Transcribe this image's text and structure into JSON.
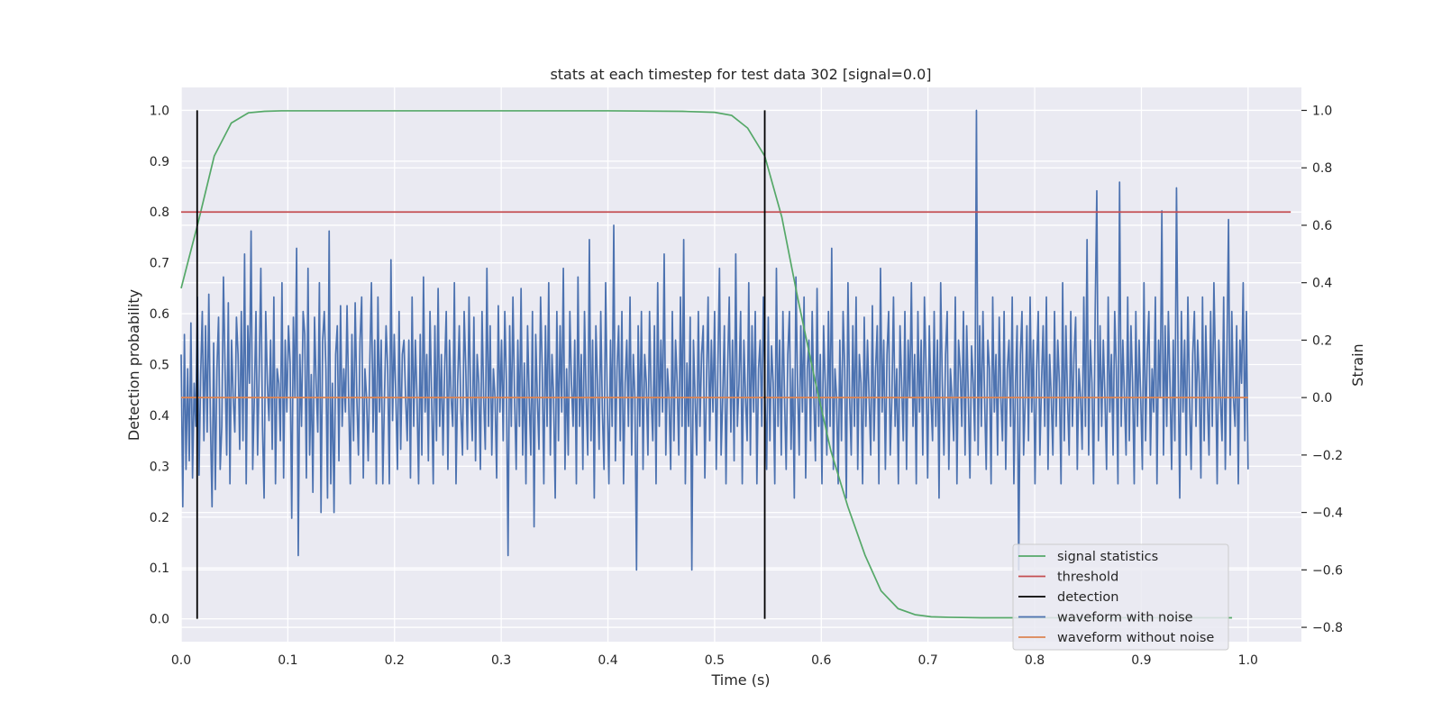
{
  "chart_data": {
    "type": "line",
    "title": "stats at each timestep for test data 302 [signal=0.0]",
    "xlabel": "Time (s)",
    "ylabel_left": "Detection probability",
    "ylabel_right": "Strain",
    "xlim": [
      0.0,
      1.05
    ],
    "ylim_left": [
      -0.045,
      1.045
    ],
    "ylim_right": [
      -0.85,
      1.08
    ],
    "x_ticks": [
      0.0,
      0.1,
      0.2,
      0.3,
      0.4,
      0.5,
      0.6,
      0.7,
      0.8,
      0.9,
      1.0
    ],
    "x_tick_labels": [
      "0.0",
      "0.1",
      "0.2",
      "0.3",
      "0.4",
      "0.5",
      "0.6",
      "0.7",
      "0.8",
      "0.9",
      "1.0"
    ],
    "y_left_ticks": [
      0.0,
      0.1,
      0.2,
      0.3,
      0.4,
      0.5,
      0.6,
      0.7,
      0.8,
      0.9,
      1.0
    ],
    "y_left_tick_labels": [
      "0.0",
      "0.1",
      "0.2",
      "0.3",
      "0.4",
      "0.5",
      "0.6",
      "0.7",
      "0.8",
      "0.9",
      "1.0"
    ],
    "y_right_ticks": [
      -0.8,
      -0.6,
      -0.4,
      -0.2,
      0.0,
      0.2,
      0.4,
      0.6,
      0.8,
      1.0
    ],
    "y_right_tick_labels": [
      "−0.8",
      "−0.6",
      "−0.4",
      "−0.2",
      "0.0",
      "0.2",
      "0.4",
      "0.6",
      "0.8",
      "1.0"
    ],
    "grid": true,
    "legend_position": "lower-right",
    "series": [
      {
        "name": "signal statistics",
        "axis": "left",
        "color": "#55a868",
        "x": [
          0.0,
          0.016,
          0.031,
          0.047,
          0.063,
          0.078,
          0.094,
          0.11,
          0.125,
          0.2,
          0.3,
          0.4,
          0.47,
          0.5,
          0.516,
          0.531,
          0.547,
          0.563,
          0.578,
          0.594,
          0.609,
          0.625,
          0.641,
          0.656,
          0.672,
          0.688,
          0.703,
          0.72,
          0.75,
          0.8,
          0.85,
          0.9,
          0.95,
          0.985
        ],
        "y": [
          0.65,
          0.78,
          0.91,
          0.975,
          0.995,
          0.998,
          0.999,
          0.999,
          0.999,
          0.999,
          0.999,
          0.999,
          0.998,
          0.996,
          0.99,
          0.965,
          0.91,
          0.79,
          0.63,
          0.47,
          0.33,
          0.22,
          0.125,
          0.055,
          0.02,
          0.008,
          0.004,
          0.003,
          0.002,
          0.002,
          0.002,
          0.002,
          0.002,
          0.002
        ]
      },
      {
        "name": "threshold",
        "axis": "left",
        "color": "#c44e52",
        "x": [
          0.0,
          1.04
        ],
        "y": [
          0.8,
          0.8
        ]
      },
      {
        "name": "detection",
        "axis": "left",
        "color": "#000000",
        "segments": [
          {
            "x": 0.015,
            "y": [
              0.0,
              1.0
            ]
          },
          {
            "x": 0.547,
            "y": [
              0.0,
              1.0
            ]
          }
        ]
      },
      {
        "name": "waveform with noise",
        "axis": "right",
        "color": "#4c72b0",
        "x_start": 0.0,
        "x_end": 1.0,
        "y": [
          0.15,
          -0.38,
          0.22,
          -0.25,
          0.1,
          -0.22,
          0.26,
          -0.28,
          0.05,
          -0.1,
          0.35,
          -0.27,
          0.08,
          0.3,
          -0.15,
          0.25,
          -0.12,
          0.36,
          -0.08,
          -0.38,
          0.19,
          -0.32,
          0.1,
          0.28,
          -0.25,
          -0.1,
          0.42,
          0.1,
          -0.2,
          0.33,
          -0.3,
          0.2,
          0.0,
          -0.12,
          0.28,
          0.15,
          -0.18,
          0.3,
          -0.15,
          0.5,
          -0.3,
          0.25,
          0.05,
          0.58,
          -0.25,
          0.0,
          0.3,
          -0.2,
          0.1,
          0.45,
          -0.1,
          -0.35,
          0.3,
          0.05,
          -0.08,
          0.2,
          -0.18,
          0.35,
          -0.3,
          0.1,
          0.05,
          -0.15,
          0.4,
          -0.28,
          0.2,
          -0.05,
          0.25,
          0.12,
          -0.42,
          0.28,
          0.0,
          0.52,
          -0.55,
          0.15,
          -0.1,
          0.3,
          0.22,
          -0.28,
          0.45,
          -0.2,
          0.08,
          -0.33,
          0.28,
          0.05,
          -0.12,
          0.4,
          -0.4,
          0.2,
          0.3,
          0.1,
          -0.35,
          0.58,
          -0.3,
          0.05,
          -0.4,
          0.15,
          0.25,
          -0.22,
          0.32,
          -0.1,
          0.1,
          -0.05,
          0.32,
          0.0,
          -0.3,
          0.22,
          -0.15,
          0.33,
          0.0,
          -0.2,
          0.2,
          0.35,
          -0.28,
          0.1,
          0.0,
          -0.22,
          0.12,
          0.4,
          -0.12,
          0.2,
          -0.3,
          0.35,
          -0.05,
          0.2,
          -0.3,
          0.0,
          0.25,
          0.1,
          -0.3,
          0.48,
          -0.08,
          0.22,
          0.0,
          -0.25,
          0.3,
          -0.18,
          0.15,
          0.2,
          0.0,
          -0.15,
          0.2,
          -0.28,
          0.35,
          -0.1,
          0.2,
          0.0,
          -0.3,
          0.22,
          -0.2,
          0.42,
          -0.05,
          0.15,
          -0.22,
          0.3,
          0.0,
          -0.3,
          0.25,
          -0.15,
          0.38,
          -0.1,
          0.15,
          -0.2,
          0.1,
          0.3,
          -0.25,
          0.2,
          0.0,
          -0.1,
          0.4,
          -0.3,
          0.05,
          0.25,
          -0.05,
          -0.2,
          0.3,
          0.1,
          -0.18,
          0.35,
          0.0,
          -0.15,
          0.28,
          -0.22,
          0.15,
          0.05,
          -0.25,
          0.3,
          0.0,
          -0.18,
          0.45,
          -0.1,
          0.25,
          -0.2,
          0.1,
          0.0,
          -0.28,
          0.32,
          -0.05,
          0.2,
          -0.15,
          0.3,
          0.05,
          -0.55,
          0.25,
          -0.1,
          0.35,
          0.0,
          -0.25,
          0.2,
          -0.1,
          0.38,
          -0.2,
          0.12,
          -0.3,
          0.25,
          0.0,
          -0.2,
          0.3,
          -0.45,
          0.22,
          0.0,
          -0.18,
          0.35,
          0.1,
          -0.3,
          0.25,
          -0.1,
          0.4,
          -0.2,
          0.15,
          0.0,
          -0.35,
          0.3,
          -0.15,
          0.25,
          -0.05,
          0.45,
          -0.25,
          0.1,
          -0.2,
          0.3,
          0.05,
          -0.1,
          0.2,
          -0.3,
          0.42,
          -0.1,
          0.15,
          -0.25,
          0.3,
          0.0,
          -0.2,
          0.55,
          -0.15,
          0.2,
          -0.35,
          0.25,
          0.05,
          -0.18,
          0.3,
          -0.05,
          -0.25,
          0.4,
          0.0,
          -0.3,
          0.2,
          -0.1,
          0.6,
          -0.22,
          0.1,
          0.25,
          -0.15,
          0.3,
          -0.3,
          0.05,
          0.2,
          -0.1,
          0.35,
          -0.2,
          0.15,
          0.0,
          -0.6,
          0.25,
          -0.1,
          0.3,
          -0.25,
          0.15,
          0.05,
          -0.2,
          0.3,
          0.0,
          -0.15,
          0.25,
          -0.3,
          0.4,
          -0.1,
          0.2,
          -0.05,
          0.5,
          -0.2,
          0.1,
          0.0,
          -0.25,
          0.3,
          -0.15,
          0.2,
          0.05,
          -0.2,
          0.35,
          -0.1,
          0.55,
          -0.3,
          0.12,
          -0.1,
          0.28,
          -0.6,
          0.2,
          0.0,
          -0.2,
          0.3,
          -0.1,
          0.15,
          0.25,
          -0.28,
          0.05,
          0.35,
          -0.15,
          0.2,
          -0.05,
          0.3,
          -0.25,
          0.1,
          0.45,
          -0.2,
          0.0,
          0.25,
          -0.3,
          0.1,
          0.35,
          -0.12,
          0.2,
          -0.22,
          0.5,
          -0.1,
          0.05,
          0.3,
          -0.3,
          0.2,
          0.0,
          -0.15,
          0.4,
          -0.2,
          0.25,
          -0.05,
          0.3,
          -0.3,
          0.1,
          0.2,
          -0.1,
          0.35,
          0.0,
          -0.25,
          0.28,
          -0.15,
          0.18,
          0.05,
          -0.3,
          0.45,
          -0.1,
          0.2,
          -0.2,
          0.3,
          0.0,
          -0.25,
          0.15,
          0.3,
          -0.18,
          0.1,
          -0.35,
          0.42,
          0.05,
          -0.2,
          0.25,
          -0.05,
          0.35,
          -0.28,
          0.1,
          0.2,
          -0.15,
          0.3,
          0.0,
          -0.22,
          0.38,
          -0.1,
          0.15,
          -0.3,
          0.25,
          0.05,
          -0.2,
          0.3,
          -0.1,
          0.52,
          -0.25,
          0.1,
          0.0,
          -0.3,
          0.2,
          -0.15,
          0.3,
          0.1,
          -0.35,
          0.4,
          0.0,
          -0.2,
          0.25,
          -0.1,
          0.35,
          -0.25,
          0.15,
          0.05,
          -0.3,
          0.28,
          -0.1,
          0.2,
          0.0,
          -0.2,
          0.32,
          -0.15,
          0.1,
          0.25,
          -0.3,
          0.45,
          -0.05,
          0.2,
          -0.25,
          0.15,
          0.3,
          -0.2,
          0.0,
          0.35,
          -0.1,
          0.1,
          -0.3,
          0.25,
          0.05,
          -0.15,
          0.3,
          -0.25,
          0.2,
          0.0,
          0.4,
          -0.1,
          0.15,
          -0.3,
          0.3,
          -0.05,
          0.2,
          -0.2,
          0.35,
          0.1,
          -0.28,
          0.25,
          0.0,
          -0.15,
          0.3,
          -0.1,
          0.2,
          -0.35,
          0.4,
          0.05,
          -0.2,
          0.15,
          0.3,
          -0.25,
          0.1,
          0.0,
          -0.15,
          0.35,
          -0.3,
          0.2,
          0.1,
          -0.1,
          0.3,
          -0.2,
          0.25,
          0.0,
          -0.28,
          0.18,
          0.05,
          -0.15,
          1.0,
          -0.2,
          0.25,
          -0.1,
          0.3,
          0.0,
          -0.25,
          0.2,
          0.1,
          -0.3,
          0.35,
          -0.05,
          0.15,
          -0.2,
          0.28,
          0.0,
          -0.15,
          0.3,
          -0.25,
          0.1,
          0.2,
          -0.1,
          0.35,
          -0.3,
          0.05,
          0.25,
          -0.6,
          0.15,
          0.3,
          -0.2,
          0.0,
          0.25,
          -0.15,
          0.35,
          -0.05,
          0.2,
          -0.3,
          0.1,
          0.3,
          -0.2,
          0.05,
          0.25,
          -0.1,
          0.35,
          -0.25,
          0.15,
          0.0,
          -0.2,
          0.3,
          -0.1,
          0.2,
          0.05,
          -0.3,
          0.4,
          -0.15,
          0.25,
          0.0,
          -0.2,
          0.3,
          -0.1,
          0.15,
          0.28,
          -0.25,
          0.1,
          0.0,
          -0.18,
          0.35,
          -0.1,
          0.55,
          -0.2,
          0.2,
          0.05,
          -0.3,
          0.3,
          0.72,
          -0.15,
          0.25,
          -0.1,
          0.2,
          0.0,
          -0.25,
          0.35,
          -0.05,
          0.15,
          -0.2,
          0.3,
          0.1,
          -0.3,
          0.75,
          -0.1,
          0.2,
          0.0,
          -0.2,
          0.35,
          -0.15,
          0.25,
          0.05,
          -0.3,
          0.3,
          -0.1,
          0.2,
          0.0,
          -0.25,
          0.4,
          -0.15,
          0.15,
          0.3,
          -0.2,
          0.1,
          -0.05,
          0.35,
          -0.3,
          0.2,
          0.0,
          0.65,
          -0.2,
          0.25,
          -0.1,
          0.3,
          0.05,
          -0.25,
          0.2,
          -0.15,
          0.73,
          0.1,
          -0.35,
          0.3,
          -0.05,
          0.2,
          -0.2,
          0.35,
          0.0,
          -0.25,
          0.15,
          0.3,
          -0.1,
          0.2,
          0.05,
          -0.28,
          0.35,
          -0.15,
          0.25,
          0.0,
          -0.2,
          0.3,
          -0.1,
          0.4,
          0.1,
          -0.3,
          0.2,
          0.0,
          -0.15,
          0.35,
          -0.25,
          0.15,
          0.62,
          -0.2,
          0.3,
          0.0,
          -0.1,
          0.25,
          -0.3,
          0.2,
          0.05,
          0.4,
          -0.15,
          0.3,
          -0.25
        ]
      },
      {
        "name": "waveform without noise",
        "axis": "right",
        "color": "#dd8452",
        "x": [
          0.0,
          1.0
        ],
        "y": [
          0.0,
          0.0
        ]
      }
    ]
  }
}
